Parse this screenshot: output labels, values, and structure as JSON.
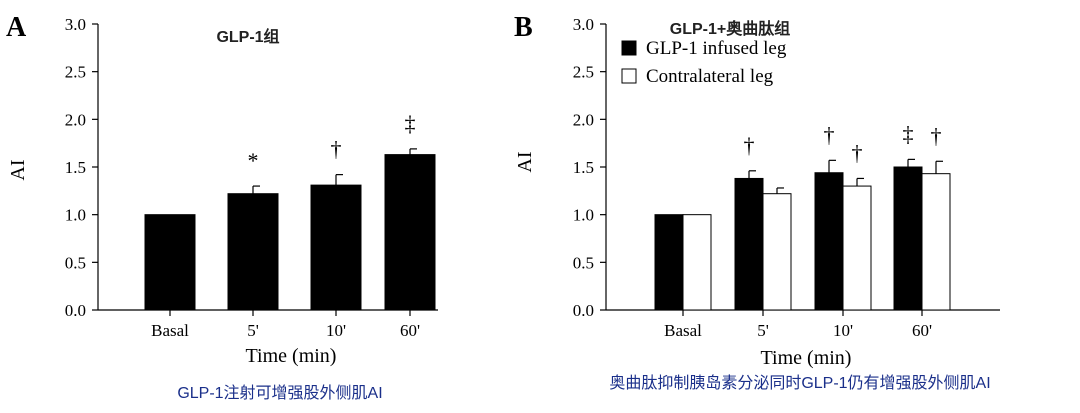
{
  "colors": {
    "filled": "#000000",
    "open": "#ffffff",
    "caption": "#1a2f8a",
    "axis": "#000000"
  },
  "chart_data": [
    {
      "type": "bar",
      "panel_letter": "A",
      "title": "GLP-1组",
      "xlabel": "Time (min)",
      "ylabel": "AI",
      "ylim": [
        0,
        3.0
      ],
      "yticks": [
        "0.0",
        "0.5",
        "1.0",
        "1.5",
        "2.0",
        "2.5",
        "3.0"
      ],
      "categories": [
        "Basal",
        "5'",
        "10'",
        "60'"
      ],
      "series": [
        {
          "values": [
            1.0,
            1.22,
            1.31,
            1.63
          ],
          "errors": [
            0,
            0.08,
            0.11,
            0.06
          ],
          "fill": "filled"
        }
      ],
      "annotations": [
        {
          "category": 1,
          "series": 0,
          "text": "*"
        },
        {
          "category": 2,
          "series": 0,
          "text": "†"
        },
        {
          "category": 3,
          "series": 0,
          "text": "‡"
        }
      ],
      "caption": "GLP-1注射可增强股外侧肌AI"
    },
    {
      "type": "bar",
      "panel_letter": "B",
      "title": "GLP-1+奥曲肽组",
      "xlabel": "Time (min)",
      "ylabel": "AI",
      "ylim": [
        0,
        3.0
      ],
      "yticks": [
        "0.0",
        "0.5",
        "1.0",
        "1.5",
        "2.0",
        "2.5",
        "3.0"
      ],
      "categories": [
        "Basal",
        "5'",
        "10'",
        "60'"
      ],
      "series": [
        {
          "name": "GLP-1 infused leg",
          "values": [
            1.0,
            1.38,
            1.44,
            1.5
          ],
          "errors": [
            0,
            0.08,
            0.13,
            0.08
          ],
          "fill": "filled"
        },
        {
          "name": "Contralateral leg",
          "values": [
            1.0,
            1.22,
            1.3,
            1.43
          ],
          "errors": [
            0,
            0.06,
            0.08,
            0.13
          ],
          "fill": "open"
        }
      ],
      "legend": "top-left",
      "annotations": [
        {
          "category": 1,
          "series": 0,
          "text": "†"
        },
        {
          "category": 2,
          "series": 0,
          "text": "†"
        },
        {
          "category": 2,
          "series": 1,
          "text": "†"
        },
        {
          "category": 3,
          "series": 0,
          "text": "‡"
        },
        {
          "category": 3,
          "series": 1,
          "text": "†"
        }
      ],
      "caption": "奥曲肽抑制胰岛素分泌同时GLP-1仍有增强股外侧肌AI"
    }
  ]
}
